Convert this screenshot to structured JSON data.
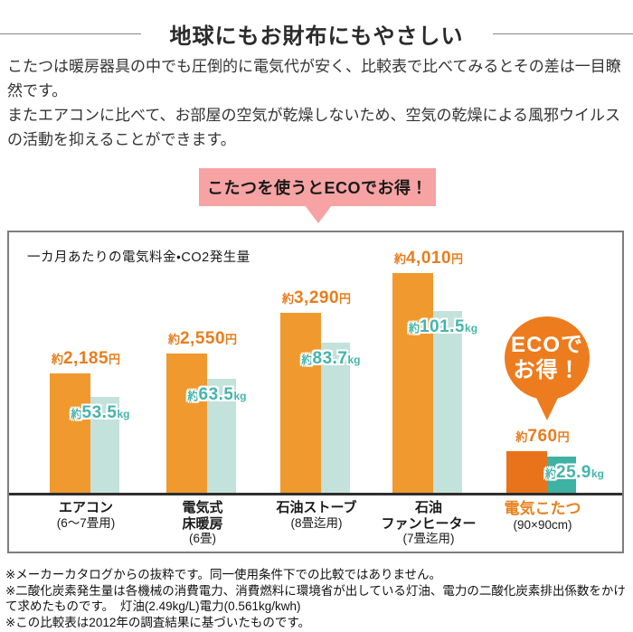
{
  "page": {
    "title": "地球にもお財布にもやさしい",
    "intro": [
      "こたつは暖房器具の中でも圧倒的に電気代が安く、比較表で比べてみるとその差は一目瞭然です。",
      "またエアコンに比べて、お部屋の空気が乾燥しないため、空気の乾燥による風邪ウイルスの活動を抑えることができます。"
    ],
    "bubble": "こたつを使うとECOでお得！",
    "bubble_color": "#f7a3a3",
    "eco_badge": {
      "line1": "ECOで",
      "line2": "お得！",
      "color": "#ed7c1e"
    }
  },
  "chart_data": {
    "type": "bar",
    "title": "一カ月あたりの電気料金・CO2発生量",
    "legend_position": "none",
    "grid": false,
    "highlight_index": 4,
    "categories": [
      {
        "lines": [
          "エアコン"
        ],
        "size": "(6〜7畳用)"
      },
      {
        "lines": [
          "電気式",
          "床暖房"
        ],
        "size": "(6畳)"
      },
      {
        "lines": [
          "石油ストーブ"
        ],
        "size": "(8畳迄用)"
      },
      {
        "lines": [
          "石油",
          "ファンヒーター"
        ],
        "size": "(7畳迄用)"
      },
      {
        "lines": [
          "電気こたつ"
        ],
        "size": "(90×90cm)"
      }
    ],
    "series": [
      {
        "name": "一カ月あたりの電気料金",
        "prefix": "約",
        "unit": "円",
        "values": [
          2185,
          2550,
          3290,
          4010,
          760
        ],
        "display": [
          "2,185",
          "2,550",
          "3,290",
          "4,010",
          "760"
        ],
        "bar_color": "#f0992f",
        "highlight_bar_color": "#e8731b",
        "label_color": "#e87d1e"
      },
      {
        "name": "一カ月あたりのCO2発生量",
        "prefix": "約",
        "unit": "kg",
        "values": [
          53.5,
          63.5,
          83.7,
          101.5,
          25.9
        ],
        "display": [
          "53.5",
          "63.5",
          "83.7",
          "101.5",
          "25.9"
        ],
        "bar_color": "#c3e2db",
        "highlight_bar_color": "#3eb2a3",
        "label_color": "#45b4ab"
      }
    ],
    "highlight_category_color": "#e8821e"
  },
  "notes": [
    "※メーカーカタログからの抜粋です。同一使用条件下での比較ではありません。",
    "※二酸化炭素発生量は各機械の消費電力、消費燃料に環境省が出している灯油、電力の二酸化炭素排出係数をかけて求めたものです。　灯油(2.49kg/L)電力(0.561kg/kwh)",
    "※この比較表は2012年の調査結果に基づいたものです。"
  ]
}
